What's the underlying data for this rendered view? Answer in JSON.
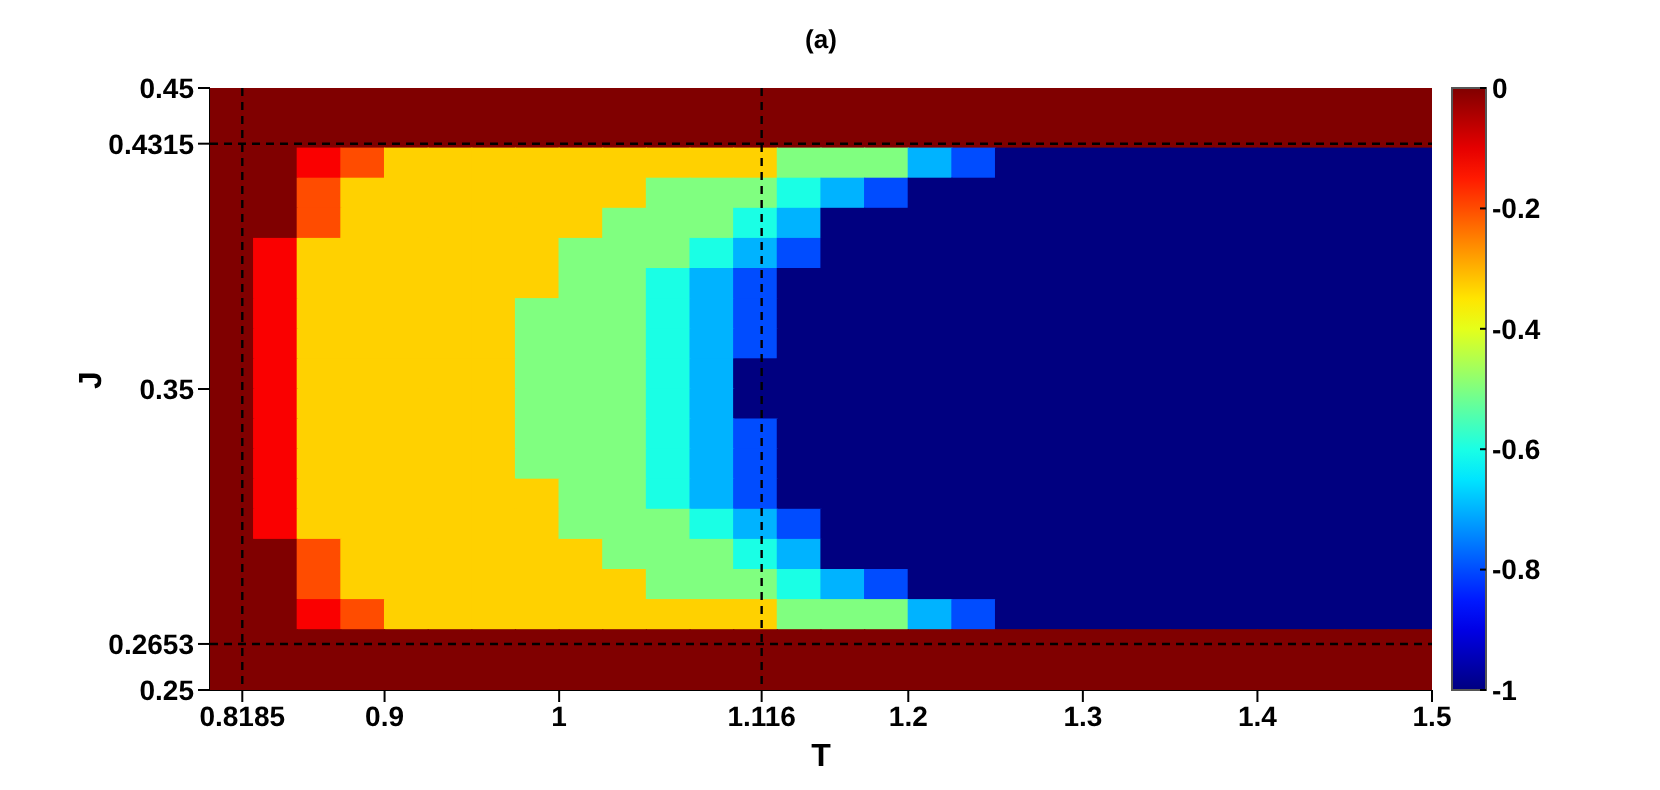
{
  "chart_data": {
    "type": "heatmap",
    "title": "(a)",
    "xlabel": "T",
    "ylabel": "J",
    "x": [
      0.8125,
      0.8375,
      0.8625,
      0.8875,
      0.9125,
      0.9375,
      0.9625,
      0.9875,
      1.0125,
      1.0375,
      1.0625,
      1.0875,
      1.1125,
      1.1375,
      1.1625,
      1.1875,
      1.2125,
      1.2375,
      1.2625,
      1.2875,
      1.3125,
      1.3375,
      1.3625,
      1.3875,
      1.4125,
      1.4375,
      1.4625,
      1.4875
    ],
    "y": [
      0.445,
      0.435,
      0.425,
      0.415,
      0.405,
      0.395,
      0.385,
      0.375,
      0.365,
      0.355,
      0.345,
      0.335,
      0.325,
      0.315,
      0.305,
      0.295,
      0.285,
      0.275,
      0.265,
      0.255
    ],
    "cells": [
      [
        0,
        0,
        0,
        0,
        0,
        0,
        0,
        0,
        0,
        0,
        0,
        0,
        0,
        0,
        0,
        0,
        0,
        0,
        0,
        0,
        0,
        0,
        0,
        0,
        0,
        0,
        0,
        0
      ],
      [
        0,
        0,
        0,
        0,
        0,
        0,
        0,
        0,
        0,
        0,
        0,
        0,
        0,
        0,
        0,
        0,
        0,
        0,
        0,
        0,
        0,
        0,
        0,
        0,
        0,
        0,
        0,
        0
      ],
      [
        0,
        0,
        -0.12,
        -0.2,
        -0.33,
        -0.33,
        -0.33,
        -0.33,
        -0.33,
        -0.33,
        -0.33,
        -0.33,
        -0.33,
        -0.5,
        -0.5,
        -0.5,
        -0.7,
        -0.8,
        -1,
        -1,
        -1,
        -1,
        -1,
        -1,
        -1,
        -1,
        -1,
        -1
      ],
      [
        0,
        0,
        -0.2,
        -0.33,
        -0.33,
        -0.33,
        -0.33,
        -0.33,
        -0.33,
        -0.33,
        -0.5,
        -0.5,
        -0.5,
        -0.6,
        -0.7,
        -0.8,
        -1,
        -1,
        -1,
        -1,
        -1,
        -1,
        -1,
        -1,
        -1,
        -1,
        -1,
        -1
      ],
      [
        0,
        0,
        -0.2,
        -0.33,
        -0.33,
        -0.33,
        -0.33,
        -0.33,
        -0.33,
        -0.5,
        -0.5,
        -0.5,
        -0.6,
        -0.7,
        -1,
        -1,
        -1,
        -1,
        -1,
        -1,
        -1,
        -1,
        -1,
        -1,
        -1,
        -1,
        -1,
        -1
      ],
      [
        0,
        -0.12,
        -0.33,
        -0.33,
        -0.33,
        -0.33,
        -0.33,
        -0.33,
        -0.5,
        -0.5,
        -0.5,
        -0.6,
        -0.7,
        -0.8,
        -1,
        -1,
        -1,
        -1,
        -1,
        -1,
        -1,
        -1,
        -1,
        -1,
        -1,
        -1,
        -1,
        -1
      ],
      [
        0,
        -0.12,
        -0.33,
        -0.33,
        -0.33,
        -0.33,
        -0.33,
        -0.33,
        -0.5,
        -0.5,
        -0.6,
        -0.7,
        -0.8,
        -1,
        -1,
        -1,
        -1,
        -1,
        -1,
        -1,
        -1,
        -1,
        -1,
        -1,
        -1,
        -1,
        -1,
        -1
      ],
      [
        0,
        -0.12,
        -0.33,
        -0.33,
        -0.33,
        -0.33,
        -0.33,
        -0.5,
        -0.5,
        -0.5,
        -0.6,
        -0.7,
        -0.8,
        -1,
        -1,
        -1,
        -1,
        -1,
        -1,
        -1,
        -1,
        -1,
        -1,
        -1,
        -1,
        -1,
        -1,
        -1
      ],
      [
        0,
        -0.12,
        -0.33,
        -0.33,
        -0.33,
        -0.33,
        -0.33,
        -0.5,
        -0.5,
        -0.5,
        -0.6,
        -0.7,
        -0.8,
        -1,
        -1,
        -1,
        -1,
        -1,
        -1,
        -1,
        -1,
        -1,
        -1,
        -1,
        -1,
        -1,
        -1,
        -1
      ],
      [
        0,
        -0.12,
        -0.33,
        -0.33,
        -0.33,
        -0.33,
        -0.33,
        -0.5,
        -0.5,
        -0.5,
        -0.6,
        -0.7,
        -1,
        -1,
        -1,
        -1,
        -1,
        -1,
        -1,
        -1,
        -1,
        -1,
        -1,
        -1,
        -1,
        -1,
        -1,
        -1
      ],
      [
        0,
        -0.12,
        -0.33,
        -0.33,
        -0.33,
        -0.33,
        -0.33,
        -0.5,
        -0.5,
        -0.5,
        -0.6,
        -0.7,
        -1,
        -1,
        -1,
        -1,
        -1,
        -1,
        -1,
        -1,
        -1,
        -1,
        -1,
        -1,
        -1,
        -1,
        -1,
        -1
      ],
      [
        0,
        -0.12,
        -0.33,
        -0.33,
        -0.33,
        -0.33,
        -0.33,
        -0.5,
        -0.5,
        -0.5,
        -0.6,
        -0.7,
        -0.8,
        -1,
        -1,
        -1,
        -1,
        -1,
        -1,
        -1,
        -1,
        -1,
        -1,
        -1,
        -1,
        -1,
        -1,
        -1
      ],
      [
        0,
        -0.12,
        -0.33,
        -0.33,
        -0.33,
        -0.33,
        -0.33,
        -0.5,
        -0.5,
        -0.5,
        -0.6,
        -0.7,
        -0.8,
        -1,
        -1,
        -1,
        -1,
        -1,
        -1,
        -1,
        -1,
        -1,
        -1,
        -1,
        -1,
        -1,
        -1,
        -1
      ],
      [
        0,
        -0.12,
        -0.33,
        -0.33,
        -0.33,
        -0.33,
        -0.33,
        -0.33,
        -0.5,
        -0.5,
        -0.6,
        -0.7,
        -0.8,
        -1,
        -1,
        -1,
        -1,
        -1,
        -1,
        -1,
        -1,
        -1,
        -1,
        -1,
        -1,
        -1,
        -1,
        -1
      ],
      [
        0,
        -0.12,
        -0.33,
        -0.33,
        -0.33,
        -0.33,
        -0.33,
        -0.33,
        -0.5,
        -0.5,
        -0.5,
        -0.6,
        -0.7,
        -0.8,
        -1,
        -1,
        -1,
        -1,
        -1,
        -1,
        -1,
        -1,
        -1,
        -1,
        -1,
        -1,
        -1,
        -1
      ],
      [
        0,
        0,
        -0.2,
        -0.33,
        -0.33,
        -0.33,
        -0.33,
        -0.33,
        -0.33,
        -0.5,
        -0.5,
        -0.5,
        -0.6,
        -0.7,
        -1,
        -1,
        -1,
        -1,
        -1,
        -1,
        -1,
        -1,
        -1,
        -1,
        -1,
        -1,
        -1,
        -1
      ],
      [
        0,
        0,
        -0.2,
        -0.33,
        -0.33,
        -0.33,
        -0.33,
        -0.33,
        -0.33,
        -0.33,
        -0.5,
        -0.5,
        -0.5,
        -0.6,
        -0.7,
        -0.8,
        -1,
        -1,
        -1,
        -1,
        -1,
        -1,
        -1,
        -1,
        -1,
        -1,
        -1,
        -1
      ],
      [
        0,
        0,
        -0.12,
        -0.2,
        -0.33,
        -0.33,
        -0.33,
        -0.33,
        -0.33,
        -0.33,
        -0.33,
        -0.33,
        -0.33,
        -0.5,
        -0.5,
        -0.5,
        -0.7,
        -0.8,
        -1,
        -1,
        -1,
        -1,
        -1,
        -1,
        -1,
        -1,
        -1,
        -1
      ],
      [
        0,
        0,
        0,
        0,
        0,
        0,
        0,
        0,
        0,
        0,
        0,
        0,
        0,
        0,
        0,
        0,
        0,
        0,
        0,
        0,
        0,
        0,
        0,
        0,
        0,
        0,
        0,
        0
      ],
      [
        0,
        0,
        0,
        0,
        0,
        0,
        0,
        0,
        0,
        0,
        0,
        0,
        0,
        0,
        0,
        0,
        0,
        0,
        0,
        0,
        0,
        0,
        0,
        0,
        0,
        0,
        0,
        0
      ]
    ],
    "clim": [
      -1,
      0
    ],
    "cticks": [
      -1,
      -0.8,
      -0.6,
      -0.4,
      -0.2,
      0
    ],
    "xlim": [
      0.8,
      1.5
    ],
    "xticks": [
      0.8185,
      0.9,
      1,
      1.116,
      1.2,
      1.3,
      1.4,
      1.5
    ],
    "ylim": [
      0.25,
      0.45
    ],
    "yticks": [
      0.25,
      0.2653,
      0.35,
      0.4315,
      0.45
    ],
    "ref_lines": [
      {
        "axis": "x",
        "value": 0.8185,
        "color": "#000000",
        "line_style": "dashed"
      },
      {
        "axis": "x",
        "value": 1.116,
        "color": "#000000",
        "line_style": "dashed"
      },
      {
        "axis": "y",
        "value": 0.4315,
        "color": "#000000",
        "line_style": "dashed"
      },
      {
        "axis": "y",
        "value": 0.2653,
        "color": "#000000",
        "line_style": "dashed"
      }
    ]
  }
}
